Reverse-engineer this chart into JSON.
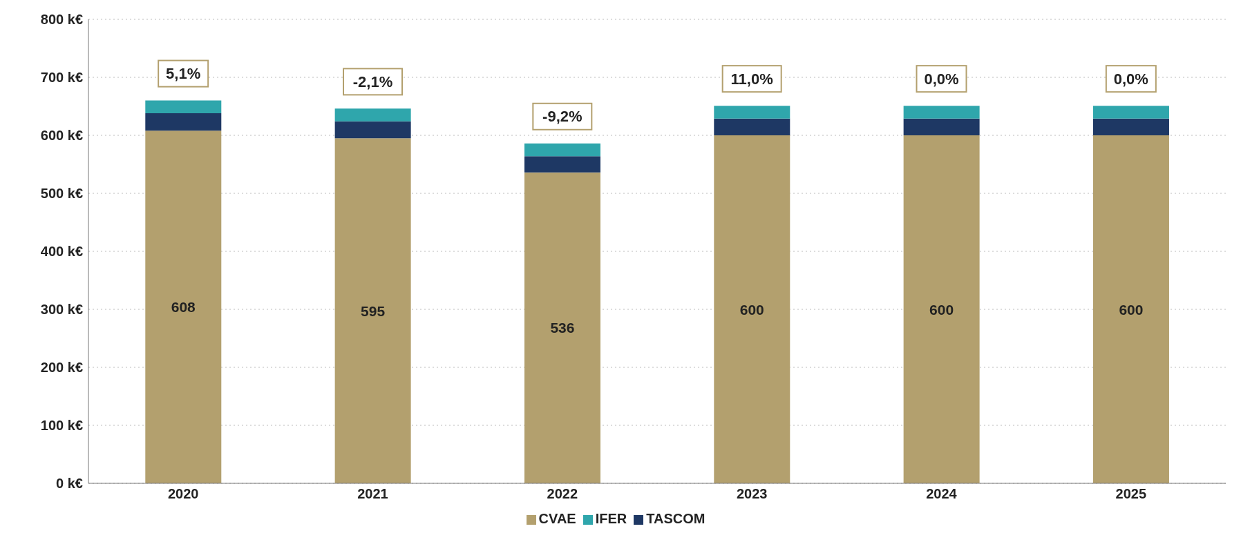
{
  "chart_data": {
    "type": "bar",
    "stacked": true,
    "categories": [
      "2020",
      "2021",
      "2022",
      "2023",
      "2024",
      "2025"
    ],
    "series": [
      {
        "name": "CVAE",
        "color": "#b3a06e",
        "values": [
          608,
          595,
          536,
          600,
          600,
          600
        ],
        "value_labels": [
          "608",
          "595",
          "536",
          "600",
          "600",
          "600"
        ]
      },
      {
        "name": "TASCOM",
        "color": "#1e3864",
        "values": [
          30,
          29,
          28,
          29,
          29,
          29
        ]
      },
      {
        "name": "IFER",
        "color": "#2fa6ac",
        "values": [
          22,
          22,
          22,
          22,
          22,
          22
        ]
      }
    ],
    "ylim": [
      0,
      800
    ],
    "yticks": [
      {
        "value": 0,
        "label": "0 k€"
      },
      {
        "value": 100,
        "label": "100 k€"
      },
      {
        "value": 200,
        "label": "200 k€"
      },
      {
        "value": 300,
        "label": "300 k€"
      },
      {
        "value": 400,
        "label": "400 k€"
      },
      {
        "value": 500,
        "label": "500 k€"
      },
      {
        "value": 600,
        "label": "600 k€"
      },
      {
        "value": 700,
        "label": "700 k€"
      },
      {
        "value": 800,
        "label": "800 k€"
      }
    ],
    "grid": "y",
    "legend": "bottom",
    "annotations": [
      {
        "text": "5,1%",
        "x": "2020",
        "y": 660
      },
      {
        "text": "-2,1%",
        "x": "2021",
        "y": 646
      },
      {
        "text": "-9,2%",
        "x": "2022",
        "y": 586
      },
      {
        "text": "11,0%",
        "x": "2023",
        "y": 651
      },
      {
        "text": "0,0%",
        "x": "2024",
        "y": 651
      },
      {
        "text": "0,0%",
        "x": "2025",
        "y": 651
      }
    ]
  }
}
